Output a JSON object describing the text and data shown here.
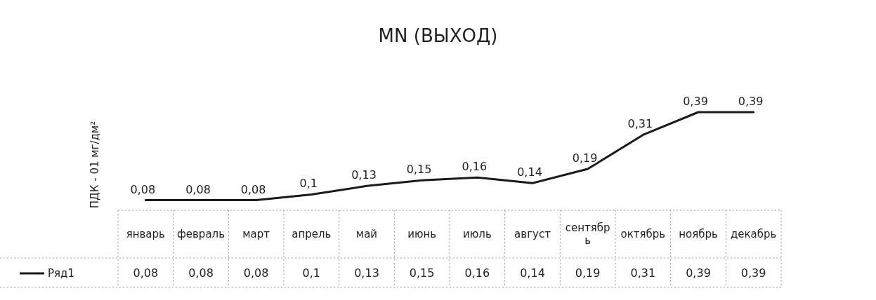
{
  "chart_data": {
    "type": "line",
    "title": "MN (ВЫХОД)",
    "ylabel": "ПДК - 01 мг/дм²",
    "categories": [
      "январь",
      "февраль",
      "март",
      "апрель",
      "май",
      "июнь",
      "июль",
      "август",
      "сентябрь",
      "октябрь",
      "ноябрь",
      "декабрь"
    ],
    "series": [
      {
        "name": "Ряд1",
        "color": "#1a1a1a",
        "values": [
          0.08,
          0.08,
          0.08,
          0.1,
          0.13,
          0.15,
          0.16,
          0.14,
          0.19,
          0.31,
          0.39,
          0.39
        ],
        "value_labels": [
          "0,08",
          "0,08",
          "0,08",
          "0,1",
          "0,13",
          "0,15",
          "0,16",
          "0,14",
          "0,19",
          "0,31",
          "0,39",
          "0,39"
        ]
      }
    ],
    "legend": "bottom left",
    "grid": false,
    "marker": "none",
    "line_style": "solid"
  }
}
